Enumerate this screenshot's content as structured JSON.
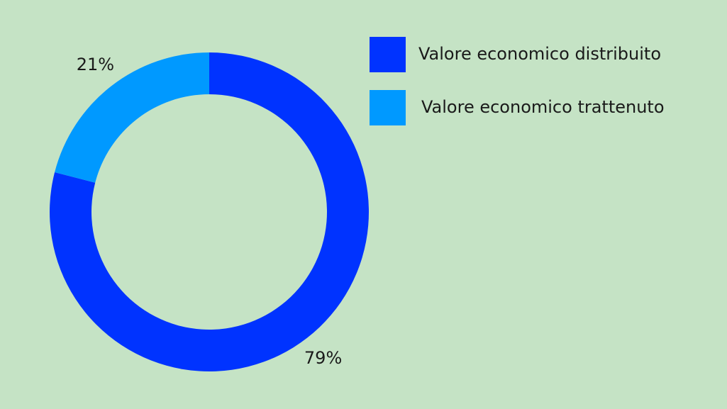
{
  "chart_data": {
    "type": "donut",
    "categories": [
      "Valore economico distribuito",
      "Valore economico trattenuto"
    ],
    "values": [
      79,
      21
    ],
    "value_labels": [
      "79%",
      "21%"
    ],
    "colors": [
      "#0033ff",
      "#0099ff"
    ],
    "legend": "top-right"
  }
}
